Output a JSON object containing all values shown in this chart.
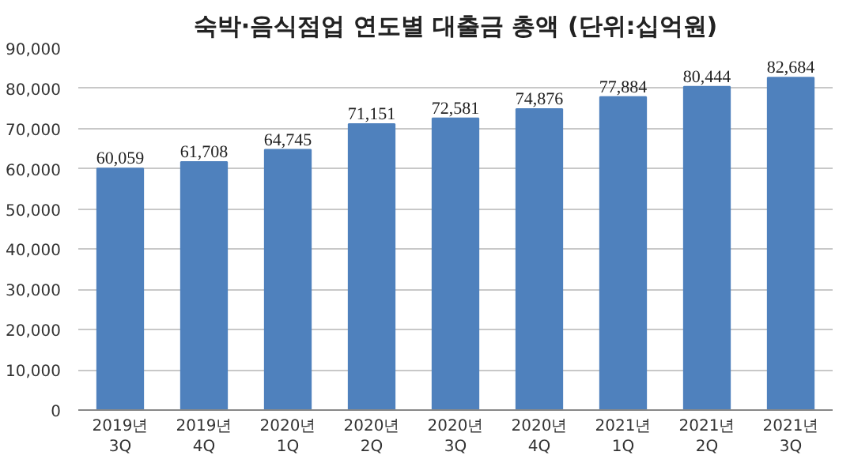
{
  "chart_data": {
    "type": "bar",
    "title": "숙박·음식점업 연도별 대출금 총액 (단위:십억원)",
    "categories": [
      "2019년\n3Q",
      "2019년\n4Q",
      "2020년\n1Q",
      "2020년\n2Q",
      "2020년\n3Q",
      "2020년\n4Q",
      "2021년\n1Q",
      "2021년\n2Q",
      "2021년\n3Q"
    ],
    "values": [
      60059,
      61708,
      64745,
      71151,
      72581,
      74876,
      77884,
      80444,
      82684
    ],
    "color": "#4f81bd",
    "ylim": [
      0,
      90000
    ],
    "yticks": [
      {
        "value": 0,
        "label": "0"
      },
      {
        "value": 10000,
        "label": "10,000"
      },
      {
        "value": 20000,
        "label": "20,000"
      },
      {
        "value": 30000,
        "label": "30,000"
      },
      {
        "value": 40000,
        "label": "40,000"
      },
      {
        "value": 50000,
        "label": "50,000"
      },
      {
        "value": 60000,
        "label": "60,000"
      },
      {
        "value": 70000,
        "label": "70,000"
      },
      {
        "value": 80000,
        "label": "80,000"
      },
      {
        "value": 90000,
        "label": "90,000"
      }
    ],
    "value_labels": [
      "60,059",
      "61,708",
      "64,745",
      "71,151",
      "72,581",
      "74,876",
      "77,884",
      "80,444",
      "82,684"
    ],
    "grid": "y"
  }
}
